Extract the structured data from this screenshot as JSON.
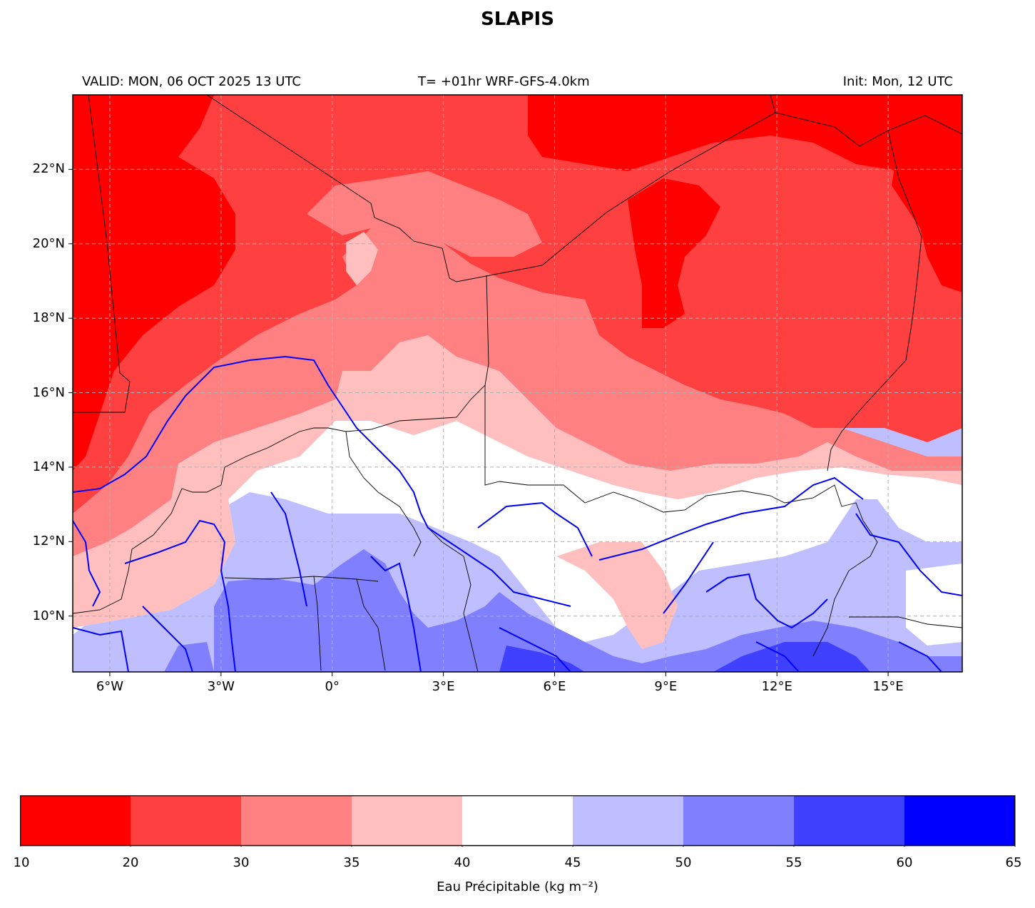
{
  "title": "SLAPIS",
  "subtitle_left": "VALID: MON, 06 OCT 2025 13 UTC",
  "subtitle_center": "T= +01hr WRF-GFS-4.0km",
  "subtitle_right": "Init: Mon, 12 UTC",
  "map": {
    "lon_range": [
      -7,
      17
    ],
    "lat_range": [
      8.5,
      24
    ],
    "x_ticks": [
      {
        "lon": -6,
        "label": "6°W"
      },
      {
        "lon": -3,
        "label": "3°W"
      },
      {
        "lon": 0,
        "label": "0°"
      },
      {
        "lon": 3,
        "label": "3°E"
      },
      {
        "lon": 6,
        "label": "6°E"
      },
      {
        "lon": 9,
        "label": "9°E"
      },
      {
        "lon": 12,
        "label": "12°E"
      },
      {
        "lon": 15,
        "label": "15°E"
      }
    ],
    "y_ticks": [
      {
        "lat": 22,
        "label": "22°N"
      },
      {
        "lat": 20,
        "label": "20°N"
      },
      {
        "lat": 18,
        "label": "18°N"
      },
      {
        "lat": 16,
        "label": "16°N"
      },
      {
        "lat": 14,
        "label": "14°N"
      },
      {
        "lat": 12,
        "label": "12°N"
      },
      {
        "lat": 10,
        "label": "10°N"
      }
    ],
    "grid": true,
    "colors": {
      "gridline": "#b0b0b0",
      "border": "#000000",
      "river": "#0000ff"
    }
  },
  "colorbar": {
    "levels": [
      10,
      20,
      30,
      35,
      40,
      45,
      50,
      55,
      60,
      65
    ],
    "tick_labels": [
      "10",
      "20",
      "30",
      "35",
      "40",
      "45",
      "50",
      "55",
      "60",
      "65"
    ],
    "colors": [
      "#ff0000",
      "#ff4040",
      "#ff8080",
      "#ffbfbf",
      "#ffffff",
      "#bfbfff",
      "#8080ff",
      "#4040ff",
      "#0000ff"
    ],
    "label": "Eau Précipitable (kg m⁻²)"
  }
}
